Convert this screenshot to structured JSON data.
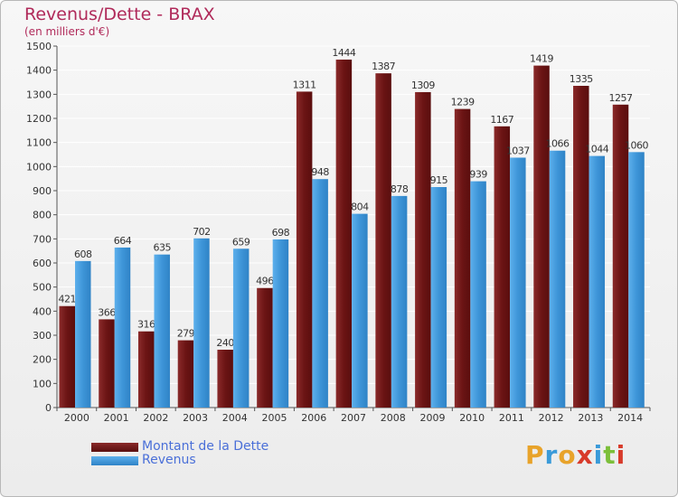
{
  "title": "Revenus/Dette - BRAX",
  "subtitle": "(en milliers d'€)",
  "brand": {
    "letters": [
      "P",
      "r",
      "o",
      "x",
      "i",
      "t",
      "i"
    ],
    "colors": [
      "#e8a32a",
      "#3a9ad9",
      "#e8a32a",
      "#d83a2a",
      "#3a9ad9",
      "#7cbf3a",
      "#d83a2a"
    ]
  },
  "colors": {
    "debt": "#6b1414",
    "revenue": "#3e95d8",
    "axis": "#444444",
    "title": "#b02a5a",
    "legend_text": "#4a6fd8"
  },
  "chart_data": {
    "type": "bar",
    "categories": [
      "2000",
      "2001",
      "2002",
      "2003",
      "2004",
      "2005",
      "2006",
      "2007",
      "2008",
      "2009",
      "2010",
      "2011",
      "2012",
      "2013",
      "2014"
    ],
    "series": [
      {
        "name": "Montant de la Dette",
        "values": [
          421,
          366,
          316,
          279,
          240,
          496,
          1311,
          1444,
          1387,
          1309,
          1239,
          1167,
          1419,
          1335,
          1257
        ],
        "color": "#6b1414"
      },
      {
        "name": "Revenus",
        "values": [
          608,
          664,
          635,
          702,
          659,
          698,
          948,
          804,
          878,
          915,
          939,
          1037,
          1066,
          1044,
          1060
        ],
        "color": "#3e95d8"
      }
    ],
    "yticks": [
      0,
      100,
      200,
      300,
      400,
      500,
      600,
      700,
      800,
      900,
      1000,
      1100,
      1200,
      1300,
      1400,
      1500
    ],
    "ylim": [
      0,
      1500
    ],
    "grid": true,
    "legend": "bottom-left"
  }
}
